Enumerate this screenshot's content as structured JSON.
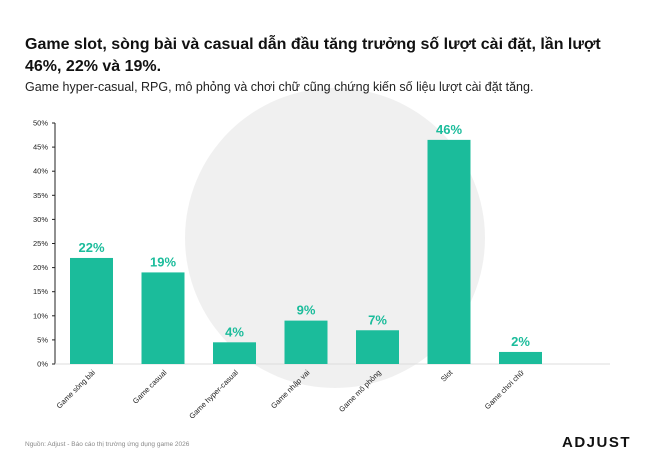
{
  "header": {
    "title": "Game slot, sòng bài và casual dẫn đầu tăng trưởng số lượt cài đặt, lần lượt 46%, 22% và 19%.",
    "subtitle": "Game hyper-casual, RPG, mô phỏng và chơi chữ cũng chứng kiến số liệu lượt cài đặt tăng."
  },
  "footer": {
    "source": "Nguồn: Adjust - Báo cáo thị trường ứng dụng game 2026",
    "logo": "ADJUST"
  },
  "colors": {
    "bar": "#1BBC9B",
    "label": "#1BBC9B",
    "axis": "#222222"
  },
  "chart_data": {
    "type": "bar",
    "categories": [
      "Game sòng bài",
      "Game casual",
      "Game hyper-casual",
      "Game nhập vai",
      "Game mô phỏng",
      "Slot",
      "Game chơi chữ"
    ],
    "values": [
      22,
      19,
      4.5,
      9,
      7,
      46.5,
      2.5
    ],
    "data_labels": [
      "22%",
      "19%",
      "4%",
      "9%",
      "7%",
      "46%",
      "2%"
    ],
    "ylim": [
      0,
      50
    ],
    "yticks": [
      "0%",
      "5%",
      "10%",
      "15%",
      "20%",
      "25%",
      "30%",
      "35%",
      "40%",
      "45%",
      "50%"
    ],
    "grid": false,
    "legend": "none"
  }
}
